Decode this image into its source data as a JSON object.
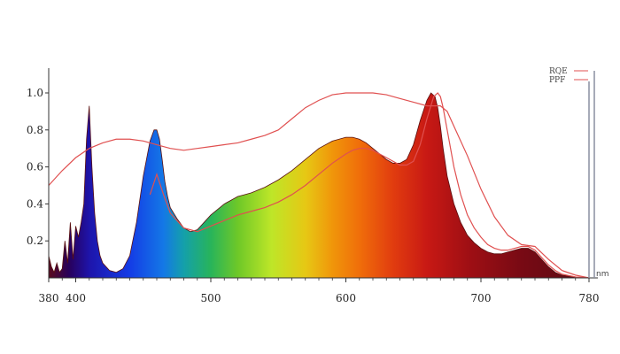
{
  "chart_data": {
    "type": "area",
    "title": "",
    "xlabel": "",
    "ylabel": "",
    "x_unit_label": "nm",
    "xlim": [
      380,
      780
    ],
    "ylim": [
      0,
      1.05
    ],
    "x_ticks": [
      380,
      400,
      500,
      600,
      700,
      780
    ],
    "y_ticks": [
      0.2,
      0.4,
      0.6,
      0.8,
      1.0
    ],
    "x_tick_labels": [
      "380",
      "400",
      "500",
      "600",
      "700",
      "780"
    ],
    "y_tick_labels": [
      "0.2",
      "0.4",
      "0.6",
      "0.8",
      "1.0"
    ],
    "grid": false,
    "legend_position": "top-right",
    "spectrum": {
      "fill": "wavelength-colored",
      "x": [
        380,
        382,
        384,
        386,
        388,
        390,
        392,
        394,
        396,
        398,
        400,
        402,
        404,
        406,
        408,
        410,
        412,
        414,
        416,
        418,
        420,
        425,
        430,
        435,
        440,
        445,
        450,
        455,
        458,
        460,
        462,
        464,
        466,
        468,
        470,
        475,
        480,
        485,
        490,
        495,
        500,
        505,
        510,
        515,
        520,
        525,
        530,
        540,
        550,
        560,
        570,
        580,
        590,
        600,
        605,
        610,
        615,
        620,
        625,
        630,
        635,
        640,
        645,
        650,
        655,
        660,
        663,
        666,
        668,
        670,
        672,
        675,
        680,
        685,
        690,
        695,
        700,
        705,
        710,
        715,
        720,
        725,
        730,
        735,
        740,
        745,
        750,
        755,
        760,
        765,
        770,
        775,
        780
      ],
      "y": [
        0.12,
        0.06,
        0.03,
        0.08,
        0.03,
        0.05,
        0.2,
        0.08,
        0.3,
        0.1,
        0.28,
        0.22,
        0.3,
        0.4,
        0.75,
        0.93,
        0.6,
        0.35,
        0.2,
        0.12,
        0.08,
        0.04,
        0.03,
        0.05,
        0.12,
        0.3,
        0.55,
        0.74,
        0.8,
        0.8,
        0.75,
        0.64,
        0.52,
        0.44,
        0.38,
        0.32,
        0.27,
        0.25,
        0.26,
        0.3,
        0.34,
        0.37,
        0.4,
        0.42,
        0.44,
        0.45,
        0.46,
        0.49,
        0.53,
        0.58,
        0.64,
        0.7,
        0.74,
        0.76,
        0.76,
        0.75,
        0.73,
        0.7,
        0.67,
        0.64,
        0.62,
        0.62,
        0.64,
        0.72,
        0.85,
        0.96,
        1.0,
        0.98,
        0.92,
        0.82,
        0.7,
        0.55,
        0.4,
        0.3,
        0.23,
        0.19,
        0.16,
        0.14,
        0.13,
        0.13,
        0.14,
        0.15,
        0.16,
        0.16,
        0.14,
        0.1,
        0.06,
        0.03,
        0.015,
        0.01,
        0.005,
        0.0,
        0.0
      ]
    },
    "series": [
      {
        "name": "RQE",
        "color": "#e05050",
        "x": [
          380,
          390,
          400,
          410,
          420,
          430,
          440,
          450,
          460,
          470,
          480,
          490,
          500,
          510,
          520,
          530,
          540,
          550,
          560,
          570,
          580,
          590,
          600,
          610,
          620,
          630,
          640,
          650,
          660,
          670,
          675,
          680,
          690,
          700,
          710,
          720,
          730,
          740,
          750,
          760,
          770,
          780
        ],
        "y": [
          0.5,
          0.58,
          0.65,
          0.7,
          0.73,
          0.75,
          0.75,
          0.74,
          0.72,
          0.7,
          0.69,
          0.7,
          0.71,
          0.72,
          0.73,
          0.75,
          0.77,
          0.8,
          0.86,
          0.92,
          0.96,
          0.99,
          1.0,
          1.0,
          1.0,
          0.99,
          0.97,
          0.95,
          0.93,
          0.93,
          0.9,
          0.82,
          0.66,
          0.48,
          0.33,
          0.23,
          0.18,
          0.17,
          0.1,
          0.04,
          0.015,
          0.0
        ]
      },
      {
        "name": "PPF",
        "color": "#e05050",
        "x": [
          455,
          460,
          465,
          470,
          480,
          490,
          500,
          510,
          520,
          530,
          540,
          550,
          560,
          570,
          580,
          590,
          600,
          605,
          610,
          615,
          620,
          625,
          630,
          635,
          640,
          645,
          650,
          655,
          660,
          665,
          668,
          670,
          672,
          675,
          680,
          685,
          690,
          695,
          700,
          705,
          710,
          715,
          720,
          725,
          730,
          735,
          740,
          745,
          750,
          755,
          760,
          770,
          780
        ],
        "y": [
          0.45,
          0.56,
          0.45,
          0.35,
          0.27,
          0.25,
          0.28,
          0.31,
          0.34,
          0.36,
          0.38,
          0.41,
          0.45,
          0.5,
          0.56,
          0.62,
          0.67,
          0.69,
          0.7,
          0.7,
          0.69,
          0.67,
          0.65,
          0.63,
          0.61,
          0.61,
          0.63,
          0.72,
          0.86,
          0.98,
          1.0,
          0.98,
          0.92,
          0.8,
          0.6,
          0.45,
          0.34,
          0.27,
          0.22,
          0.18,
          0.16,
          0.15,
          0.15,
          0.16,
          0.17,
          0.17,
          0.15,
          0.11,
          0.07,
          0.04,
          0.02,
          0.005,
          0.0
        ]
      }
    ]
  }
}
